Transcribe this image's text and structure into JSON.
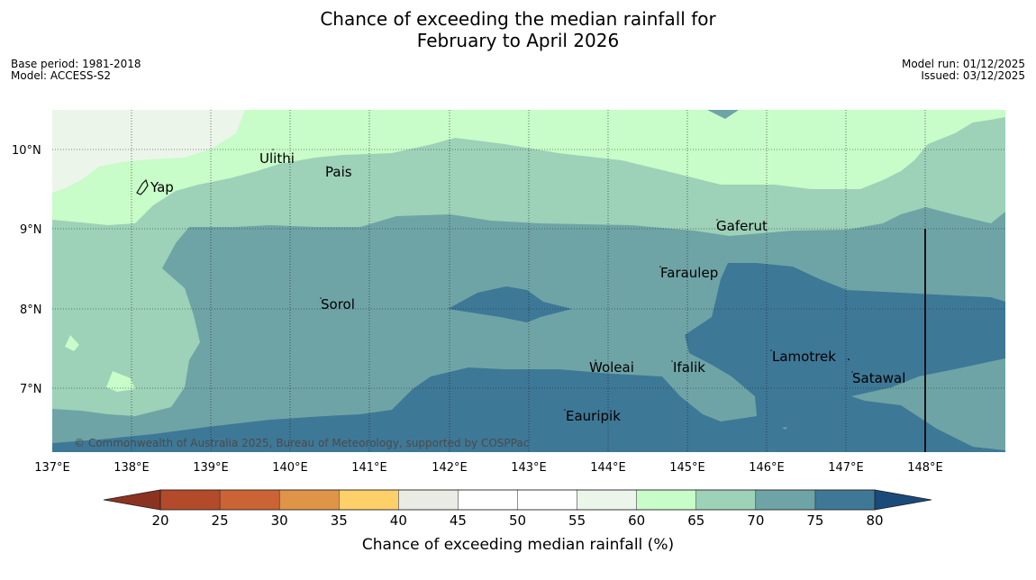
{
  "title": {
    "line1": "Chance of exceeding the median rainfall for",
    "line2": "February to April 2026"
  },
  "meta": {
    "base_period": "Base period: 1981-2018",
    "model": "Model: ACCESS-S2",
    "model_run": "Model run: 01/12/2025",
    "issued": "Issued: 03/12/2025"
  },
  "map": {
    "lat_labels": [
      "10°N",
      "9°N",
      "8°N",
      "7°N"
    ],
    "lon_labels": [
      "137°E",
      "138°E",
      "139°E",
      "140°E",
      "141°E",
      "142°E",
      "143°E",
      "144°E",
      "145°E",
      "146°E",
      "147°E",
      "148°E"
    ],
    "places": [
      "Ulithi",
      "Pais",
      "Yap",
      "Gaferut",
      "Faraulep",
      "Sorol",
      "Woleai",
      "Ifalik",
      "Lamotrek",
      "Satawal",
      "Eauripik"
    ],
    "credit": "© Commonwealth of Australia 2025, Bureau of Meteorology, supported by COSPPac"
  },
  "colorbar": {
    "ticks": [
      "20",
      "25",
      "30",
      "35",
      "40",
      "45",
      "50",
      "55",
      "60",
      "65",
      "70",
      "75",
      "80"
    ],
    "colors": [
      "#b34a2a",
      "#cc6335",
      "#e09448",
      "#fdd06a",
      "#ebebe6",
      "#ffffff",
      "#ffffff",
      "#ecf5ea",
      "#c8fcc8",
      "#9dd1b8",
      "#6fa4a6",
      "#3e7897"
    ],
    "low_color": "#8b3220",
    "high_color": "#1a4a7a",
    "title": "Chance of exceeding median rainfall (%)"
  }
}
